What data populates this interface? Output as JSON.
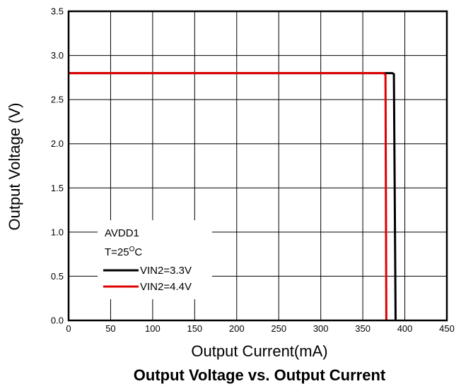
{
  "chart_data": {
    "type": "line",
    "title": "Output Voltage vs. Output Current",
    "xlabel": "Output Current(mA)",
    "ylabel": "Output Voltage (V)",
    "xlim": [
      0,
      450
    ],
    "ylim": [
      0.0,
      3.5
    ],
    "x_ticks": [
      "0",
      "50",
      "100",
      "150",
      "200",
      "250",
      "300",
      "350",
      "400",
      "450"
    ],
    "y_ticks": [
      "0.0",
      "0.5",
      "1.0",
      "1.5",
      "2.0",
      "2.5",
      "3.0",
      "3.5"
    ],
    "grid": true,
    "legend": {
      "placement": "bottom-left",
      "heading": "AVDD1",
      "condition": {
        "prefix": "T=25",
        "superscript": "O",
        "suffix": "C"
      }
    },
    "series": [
      {
        "name": "VIN2=3.3V",
        "color": "#000000",
        "points": [
          [
            0,
            2.8
          ],
          [
            385,
            2.8
          ],
          [
            387,
            2.79
          ],
          [
            389,
            0.0
          ]
        ]
      },
      {
        "name": "VIN2=4.4V",
        "color": "#e00000",
        "points": [
          [
            0,
            2.8
          ],
          [
            375,
            2.8
          ],
          [
            377,
            2.78
          ],
          [
            378,
            0.0
          ]
        ]
      }
    ]
  }
}
